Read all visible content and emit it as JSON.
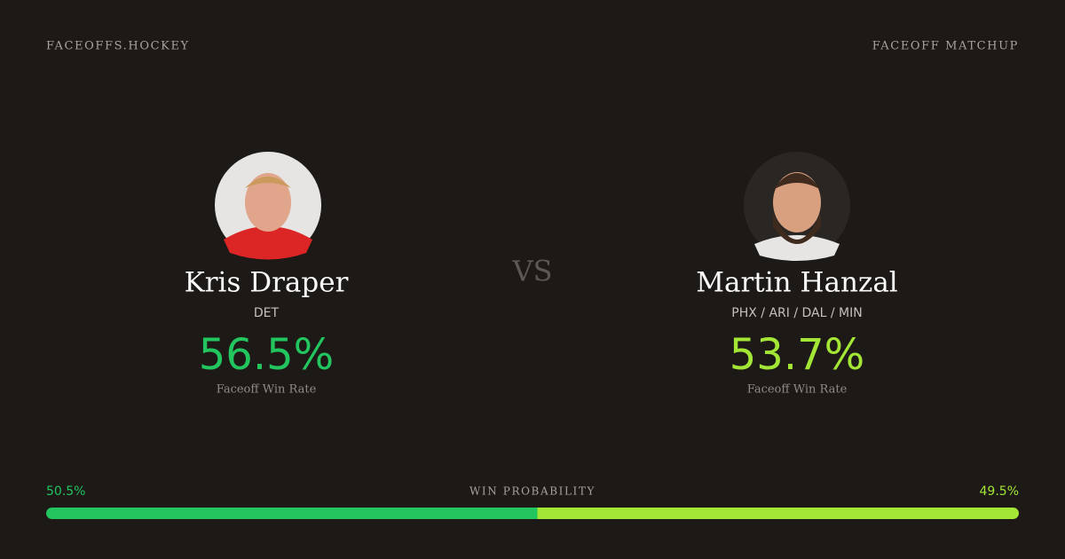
{
  "header": {
    "site": "FACEOFFS.HOCKEY",
    "label": "FACEOFF MATCHUP"
  },
  "vs": "VS",
  "players": [
    {
      "name": "Kris Draper",
      "team": "DET",
      "rate": "56.5%",
      "rate_label": "Faceoff Win Rate",
      "color": "#22c55e"
    },
    {
      "name": "Martin Hanzal",
      "team": "PHX / ARI / DAL / MIN",
      "rate": "53.7%",
      "rate_label": "Faceoff Win Rate",
      "color": "#a3e635"
    }
  ],
  "win_probability": {
    "title": "WIN PROBABILITY",
    "values": [
      50.5,
      49.5
    ],
    "value_labels": [
      "50.5%",
      "49.5%"
    ],
    "colors": [
      "#22c55e",
      "#a3e635"
    ]
  }
}
